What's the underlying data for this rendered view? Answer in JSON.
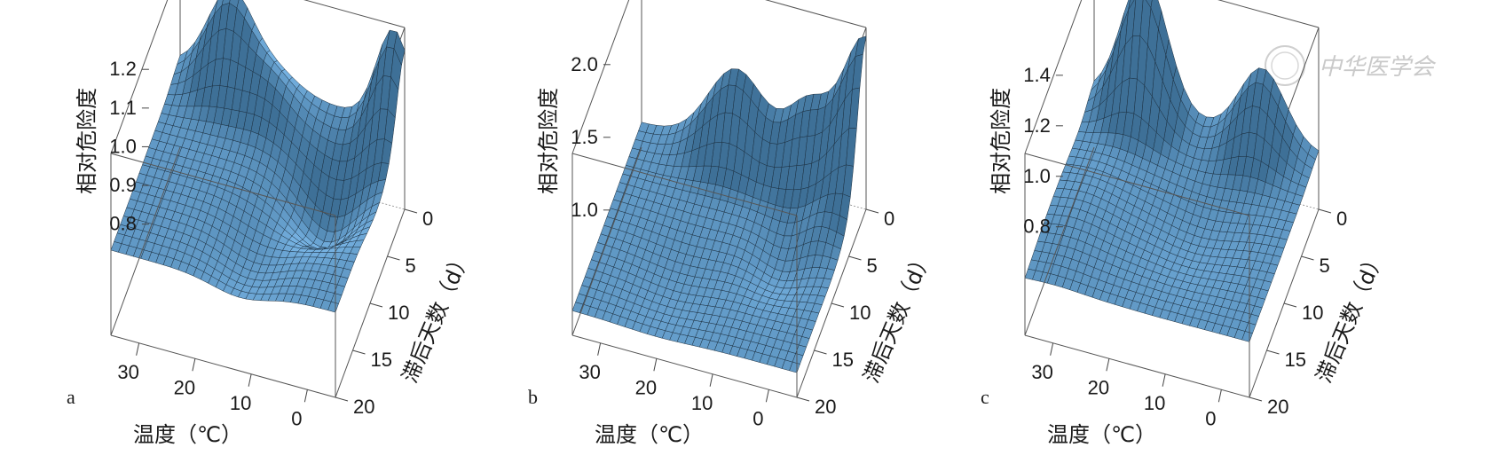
{
  "chart_data": [
    {
      "type": "surface3d",
      "panel_label": "a",
      "zlabel": "相对危险度",
      "xlabel": "温度（℃）",
      "ylabel": "滞后天数（d）",
      "x_ticks": [
        "30",
        "20",
        "10",
        "0"
      ],
      "y_ticks": [
        "0",
        "5",
        "10",
        "15",
        "20"
      ],
      "z_ticks": [
        "0.8",
        "0.9",
        "1.0",
        "1.1",
        "1.2"
      ],
      "zlim": [
        0.78,
        1.25
      ],
      "features": [
        {
          "temp": 0,
          "lag": 0,
          "rr": 1.24,
          "desc": "peak"
        },
        {
          "temp": 25,
          "lag": 0,
          "rr": 1.22,
          "desc": "peak"
        },
        {
          "temp": 5,
          "lag": 8,
          "rr": 0.84,
          "desc": "trough"
        }
      ]
    },
    {
      "type": "surface3d",
      "panel_label": "b",
      "zlabel": "相对危险度",
      "xlabel": "温度（℃）",
      "ylabel": "滞后天数（d）",
      "x_ticks": [
        "30",
        "20",
        "10",
        "0"
      ],
      "y_ticks": [
        "0",
        "5",
        "10",
        "15",
        "20"
      ],
      "z_ticks": [
        "1.0",
        "1.5",
        "2.0"
      ],
      "zlim": [
        0.85,
        2.1
      ],
      "features": [
        {
          "temp": 0,
          "lag": 0,
          "rr": 2.05,
          "desc": "peak"
        },
        {
          "temp": 20,
          "lag": 0,
          "rr": 1.55,
          "desc": "ridge"
        },
        {
          "temp": 5,
          "lag": 8,
          "rr": 0.9,
          "desc": "trough"
        }
      ]
    },
    {
      "type": "surface3d",
      "panel_label": "c",
      "zlabel": "相对危险度",
      "xlabel": "温度（℃）",
      "ylabel": "滞后天数（d）",
      "x_ticks": [
        "30",
        "20",
        "10",
        "0"
      ],
      "y_ticks": [
        "0",
        "5",
        "10",
        "15",
        "20"
      ],
      "z_ticks": [
        "0.8",
        "1.0",
        "1.2",
        "1.4"
      ],
      "zlim": [
        0.78,
        1.5
      ],
      "features": [
        {
          "temp": 25,
          "lag": 0,
          "rr": 1.5,
          "desc": "peak"
        },
        {
          "temp": 5,
          "lag": 0,
          "rr": 1.28,
          "desc": "peak"
        }
      ]
    }
  ],
  "watermark": "中华医学会",
  "colors": {
    "surface": "#5fa3d6",
    "surface_dark": "#2b5a7e",
    "mesh": "#1b2f40",
    "box": "#555555"
  }
}
